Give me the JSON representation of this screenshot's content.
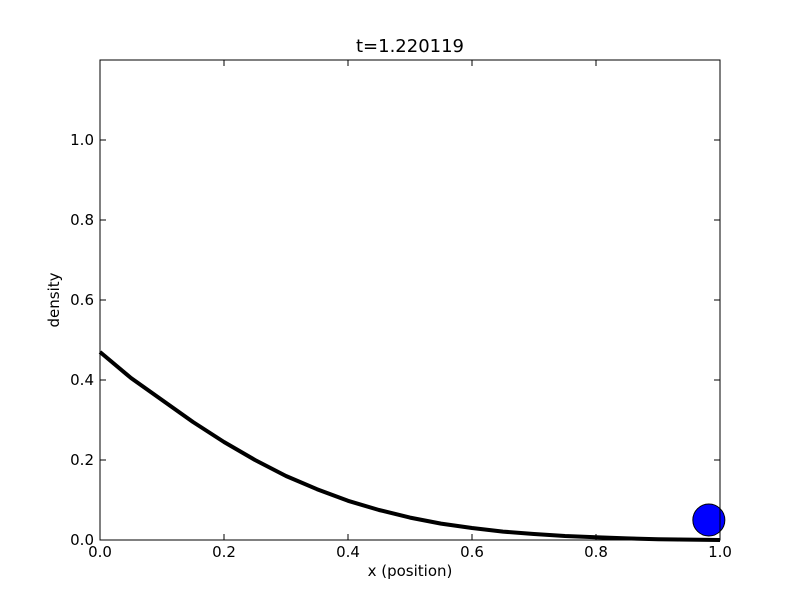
{
  "chart_data": {
    "type": "line",
    "title": "t=1.220119",
    "xlabel": "x (position)",
    "ylabel": "density",
    "xlim": [
      0.0,
      1.0
    ],
    "ylim": [
      0.0,
      1.2
    ],
    "grid": false,
    "x_ticks": [
      "0.0",
      "0.2",
      "0.4",
      "0.6",
      "0.8",
      "1.0"
    ],
    "y_ticks": [
      "0.0",
      "0.2",
      "0.4",
      "0.6",
      "0.8",
      "1.0"
    ],
    "series": [
      {
        "color": "#000000",
        "x": [
          0.0,
          0.05,
          0.1,
          0.15,
          0.2,
          0.25,
          0.3,
          0.35,
          0.4,
          0.45,
          0.5,
          0.55,
          0.6,
          0.65,
          0.7,
          0.75,
          0.8,
          0.85,
          0.9,
          0.95,
          1.0
        ],
        "y": [
          0.47,
          0.405,
          0.35,
          0.295,
          0.245,
          0.2,
          0.16,
          0.127,
          0.098,
          0.075,
          0.056,
          0.041,
          0.03,
          0.021,
          0.015,
          0.01,
          0.007,
          0.004,
          0.002,
          0.001,
          0.0
        ]
      }
    ],
    "marker": {
      "x": 0.982,
      "y": 0.05,
      "color": "#0000ff"
    }
  }
}
